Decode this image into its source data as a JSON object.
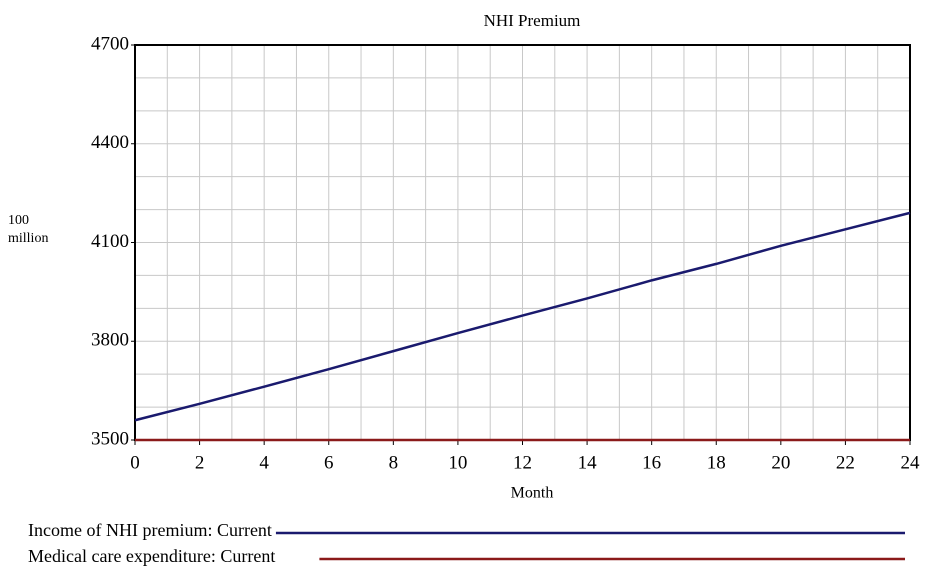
{
  "chart_data": {
    "type": "line",
    "title": "NHI Premium",
    "x_label": "Month",
    "y_label": "100 million",
    "x": [
      0,
      2,
      4,
      6,
      8,
      10,
      12,
      14,
      16,
      18,
      20,
      22,
      24
    ],
    "series": [
      {
        "name": "Income of NHI premium: Current",
        "color": "#1a1a6e",
        "values": [
          3560,
          3610,
          3662,
          3715,
          3770,
          3825,
          3878,
          3930,
          3985,
          4035,
          4090,
          4140,
          4190
        ]
      },
      {
        "name": "Medical care expenditure: Current",
        "color": "#8b1a1a",
        "values": [
          3500,
          3500,
          3500,
          3500,
          3500,
          3500,
          3500,
          3500,
          3500,
          3500,
          3500,
          3500,
          3500
        ]
      }
    ],
    "xlim": [
      0,
      24
    ],
    "ylim": [
      3500,
      4700
    ],
    "xticks": [
      0,
      2,
      4,
      6,
      8,
      10,
      12,
      14,
      16,
      18,
      20,
      22,
      24
    ],
    "yticks": [
      3500,
      3800,
      4100,
      4400,
      4700
    ],
    "xminor_ticks": [
      0,
      1,
      2,
      3,
      4,
      5,
      6,
      7,
      8,
      9,
      10,
      11,
      12,
      13,
      14,
      15,
      16,
      17,
      18,
      19,
      20,
      21,
      22,
      23,
      24
    ],
    "yminor_ticks": [
      3500,
      3600,
      3700,
      3800,
      3900,
      4000,
      4100,
      4200,
      4300,
      4400,
      4500,
      4600,
      4700
    ],
    "grid": true
  }
}
